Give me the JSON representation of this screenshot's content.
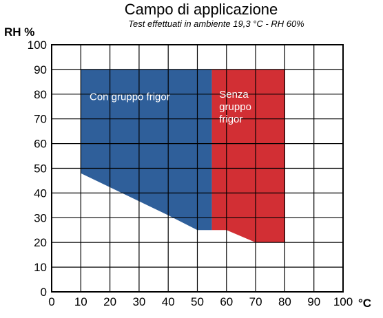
{
  "title": "Campo di applicazione",
  "subtitle": "Test effettuati in ambiente 19,3 °C - RH 60%",
  "chart_data": {
    "type": "area",
    "title": "Campo di applicazione",
    "subtitle": "Test effettuati in ambiente 19,3 °C - RH 60%",
    "xlabel": "°C",
    "ylabel": "RH %",
    "xlim": [
      0,
      100
    ],
    "ylim": [
      0,
      100
    ],
    "x_ticks": [
      "0",
      "10",
      "20",
      "30",
      "40",
      "50",
      "60",
      "70",
      "80",
      "90",
      "100"
    ],
    "y_ticks": [
      "0",
      "10",
      "20",
      "30",
      "40",
      "50",
      "60",
      "70",
      "80",
      "90",
      "100"
    ],
    "grid": true,
    "regions": [
      {
        "name": "Con gruppo frigor",
        "label_lines": [
          "Con gruppo frigor"
        ],
        "color": "#2f5f9a",
        "points": [
          [
            10,
            90
          ],
          [
            55,
            90
          ],
          [
            55,
            25
          ],
          [
            50,
            25
          ],
          [
            40,
            31
          ],
          [
            10,
            48
          ]
        ]
      },
      {
        "name": "Senza gruppo frigor",
        "label_lines": [
          "Senza",
          "gruppo",
          "frigor"
        ],
        "color": "#d22f34",
        "points": [
          [
            55,
            90
          ],
          [
            80,
            90
          ],
          [
            80,
            20
          ],
          [
            70,
            20
          ],
          [
            60,
            25
          ],
          [
            55,
            25
          ]
        ]
      }
    ]
  }
}
